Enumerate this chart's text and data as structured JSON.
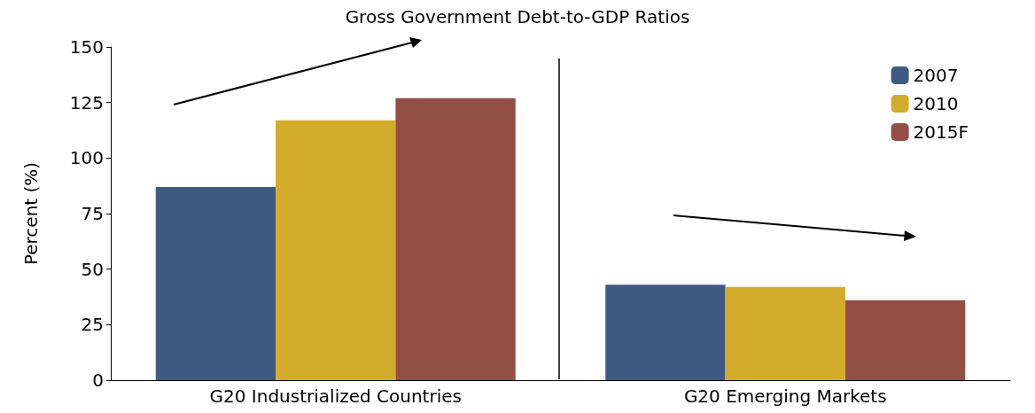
{
  "chart_data": {
    "type": "bar",
    "title": "Gross Government Debt-to-GDP Ratios",
    "ylabel": "Percent (%)",
    "categories": [
      "G20 Industrialized Countries",
      "G20 Emerging Markets"
    ],
    "series": [
      {
        "name": "2007",
        "color": "#3e5a82",
        "values": [
          87,
          43
        ]
      },
      {
        "name": "2010",
        "color": "#d4ac2b",
        "values": [
          117,
          42
        ]
      },
      {
        "name": "2015F",
        "color": "#934e46",
        "values": [
          127,
          36
        ]
      }
    ],
    "ylim": [
      0,
      150
    ],
    "yticks": [
      0,
      25,
      50,
      75,
      100,
      125,
      150
    ],
    "grid": false,
    "legend": "top right"
  }
}
